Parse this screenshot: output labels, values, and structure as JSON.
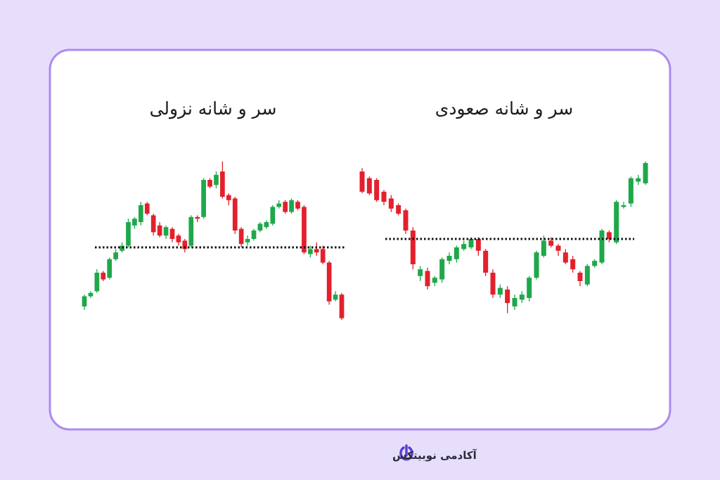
{
  "chart_data": [
    {
      "type": "candlestick",
      "title": "سر و شانه نزولی",
      "open": [
        10,
        16,
        19,
        30,
        27,
        38,
        43,
        46,
        58,
        60,
        71,
        64,
        58,
        52,
        56,
        52,
        49,
        46,
        63,
        63,
        85,
        82,
        90,
        76,
        74,
        56,
        48,
        50,
        55,
        57,
        59,
        69,
        72,
        66,
        72,
        69,
        41,
        44,
        44,
        36,
        14,
        17
      ],
      "high": [
        17,
        19,
        32,
        31,
        39,
        44,
        48,
        62,
        63,
        72,
        72,
        65,
        60,
        58,
        57,
        53,
        50,
        64,
        64,
        86,
        86,
        90,
        96,
        77,
        75,
        57,
        52,
        56,
        60,
        61,
        70,
        73,
        73,
        74,
        73,
        70,
        46,
        48,
        46,
        37,
        19,
        18
      ],
      "low": [
        8,
        15,
        18,
        25,
        26,
        37,
        42,
        45,
        56,
        58,
        64,
        52,
        51,
        50,
        48,
        46,
        42,
        45,
        60,
        62,
        80,
        80,
        74,
        70,
        53,
        45,
        46,
        49,
        54,
        56,
        58,
        68,
        65,
        65,
        67,
        41,
        39,
        40,
        35,
        11,
        13,
        2
      ],
      "close": [
        16,
        18,
        30,
        26,
        38,
        42,
        46,
        60,
        62,
        70,
        65,
        54,
        52,
        57,
        50,
        48,
        44,
        63,
        62,
        85,
        81,
        88,
        75,
        73,
        55,
        47,
        50,
        55,
        59,
        60,
        69,
        71,
        66,
        73,
        68,
        42,
        44,
        42,
        36,
        13,
        17,
        3
      ],
      "neckline": 45,
      "ylim": [
        0,
        100
      ],
      "up_color": "#1ea84a",
      "down_color": "#e3202c"
    },
    {
      "type": "candlestick",
      "title": "سر و شانه صعودی",
      "open": [
        90,
        86,
        85,
        78,
        74,
        70,
        67,
        55,
        28,
        31,
        24,
        26,
        37,
        38,
        44,
        45,
        50,
        43,
        30,
        17,
        20,
        10,
        14,
        15,
        27,
        40,
        49,
        46,
        42,
        38,
        30,
        23,
        34,
        36,
        54,
        48,
        69,
        71,
        84,
        83
      ],
      "high": [
        92,
        87,
        86,
        79,
        76,
        71,
        68,
        57,
        34,
        33,
        28,
        39,
        42,
        46,
        49,
        51,
        51,
        44,
        32,
        23,
        22,
        17,
        19,
        28,
        43,
        52,
        51,
        47,
        44,
        40,
        31,
        35,
        38,
        56,
        55,
        73,
        72,
        87,
        88,
        96
      ],
      "low": [
        77,
        76,
        72,
        70,
        66,
        64,
        53,
        32,
        25,
        20,
        22,
        24,
        35,
        36,
        43,
        44,
        40,
        28,
        15,
        15,
        6,
        8,
        12,
        13,
        26,
        39,
        45,
        40,
        35,
        30,
        22,
        22,
        33,
        35,
        48,
        47,
        68,
        69,
        82,
        82
      ],
      "close": [
        78,
        77,
        73,
        72,
        68,
        65,
        55,
        35,
        32,
        22,
        27,
        38,
        40,
        45,
        47,
        50,
        43,
        30,
        17,
        21,
        12,
        15,
        17,
        27,
        42,
        49,
        46,
        43,
        36,
        32,
        25,
        34,
        37,
        55,
        50,
        72,
        70,
        86,
        86,
        95
      ],
      "neckline": 50,
      "ylim": [
        0,
        100
      ],
      "up_color": "#1ea84a",
      "down_color": "#e3202c"
    }
  ],
  "footer": {
    "brand": "آکادمی نوبیتکس"
  }
}
